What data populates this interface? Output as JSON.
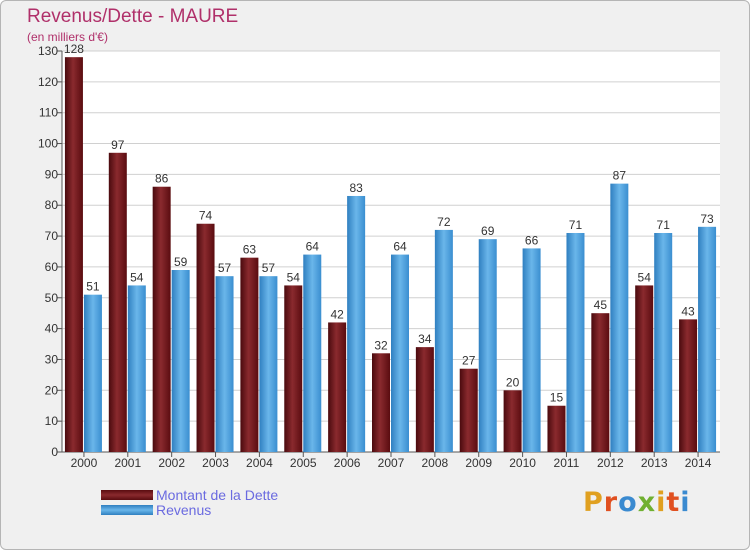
{
  "chart_data": {
    "type": "bar",
    "title": "Revenus/Dette - MAURE",
    "subtitle": "(en milliers d'€)",
    "categories": [
      "2000",
      "2001",
      "2002",
      "2003",
      "2004",
      "2005",
      "2006",
      "2007",
      "2008",
      "2009",
      "2010",
      "2011",
      "2012",
      "2013",
      "2014"
    ],
    "series": [
      {
        "name": "Montant de la Dette",
        "values": [
          128,
          97,
          86,
          74,
          63,
          54,
          42,
          32,
          34,
          27,
          20,
          15,
          45,
          54,
          43
        ],
        "color": "#7a1a1e"
      },
      {
        "name": "Revenus",
        "values": [
          51,
          54,
          59,
          57,
          57,
          64,
          83,
          64,
          72,
          69,
          66,
          71,
          87,
          71,
          73
        ],
        "color": "#4ea3e0"
      }
    ],
    "ylim": [
      0,
      130
    ],
    "yticks": [
      0,
      10,
      20,
      30,
      40,
      50,
      60,
      70,
      80,
      90,
      100,
      110,
      120,
      130
    ],
    "grid": true,
    "legend_position": "bottom-left"
  },
  "logo": {
    "letters": [
      "P",
      "r",
      "o",
      "x",
      "i",
      "t",
      "i"
    ],
    "colors": [
      "#e0a020",
      "#e05020",
      "#3a8ad0",
      "#70b030",
      "#e0a020",
      "#e05020",
      "#3a8ad0"
    ]
  }
}
